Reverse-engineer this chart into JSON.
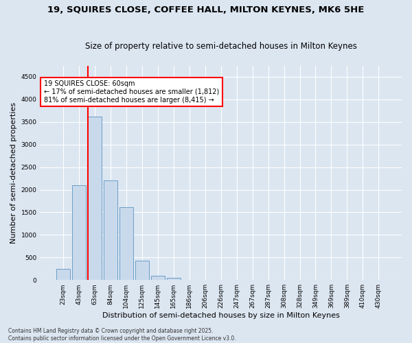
{
  "title_line1": "19, SQUIRES CLOSE, COFFEE HALL, MILTON KEYNES, MK6 5HE",
  "title_line2": "Size of property relative to semi-detached houses in Milton Keynes",
  "xlabel": "Distribution of semi-detached houses by size in Milton Keynes",
  "ylabel": "Number of semi-detached properties",
  "annotation_title": "19 SQUIRES CLOSE: 60sqm",
  "annotation_line2": "← 17% of semi-detached houses are smaller (1,812)",
  "annotation_line3": "81% of semi-detached houses are larger (8,415) →",
  "footer_line1": "Contains HM Land Registry data © Crown copyright and database right 2025.",
  "footer_line2": "Contains public sector information licensed under the Open Government Licence v3.0.",
  "categories": [
    "23sqm",
    "43sqm",
    "63sqm",
    "84sqm",
    "104sqm",
    "125sqm",
    "145sqm",
    "165sqm",
    "186sqm",
    "206sqm",
    "226sqm",
    "247sqm",
    "267sqm",
    "287sqm",
    "308sqm",
    "328sqm",
    "349sqm",
    "369sqm",
    "389sqm",
    "410sqm",
    "430sqm"
  ],
  "values": [
    250,
    2100,
    3620,
    2200,
    1620,
    430,
    100,
    55,
    0,
    0,
    0,
    0,
    0,
    0,
    0,
    0,
    0,
    0,
    0,
    0,
    0
  ],
  "bar_color": "#c9d9ec",
  "bar_edge_color": "#6a9ec5",
  "highlight_bar_index": 2,
  "highlight_color": "#ff0000",
  "ylim": [
    0,
    4750
  ],
  "yticks": [
    0,
    500,
    1000,
    1500,
    2000,
    2500,
    3000,
    3500,
    4000,
    4500
  ],
  "bg_color": "#dce6f1",
  "plot_bg_color": "#dce6f1",
  "grid_color": "#ffffff",
  "annotation_box_color": "#ffffff",
  "annotation_box_edge_color": "#ff0000",
  "title_fontsize": 9.5,
  "subtitle_fontsize": 8.5,
  "tick_fontsize": 6.5,
  "ylabel_fontsize": 8,
  "xlabel_fontsize": 8,
  "annotation_fontsize": 7,
  "footer_fontsize": 5.5
}
